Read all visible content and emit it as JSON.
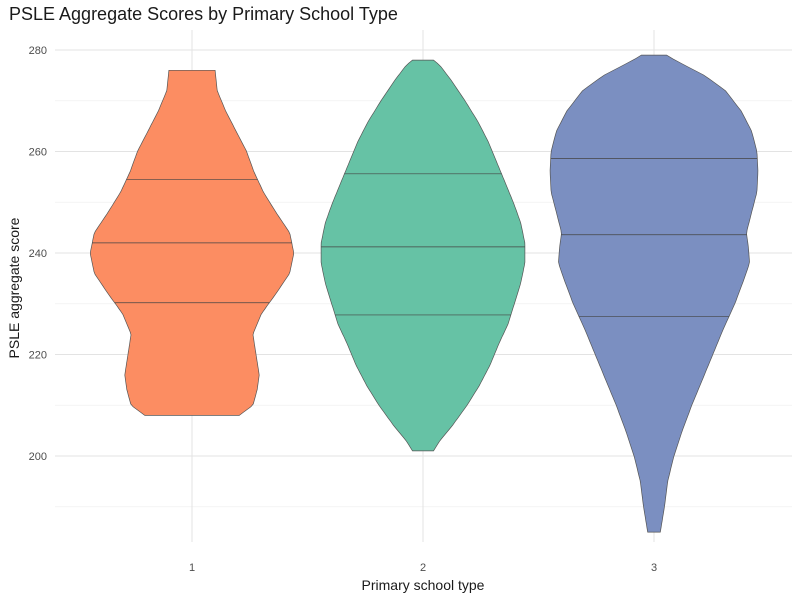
{
  "chart_data": {
    "type": "violin",
    "title": "PSLE Aggregate Scores by Primary School Type",
    "xlabel": "Primary school type",
    "ylabel": "PSLE aggregate score",
    "ylim": [
      185,
      280
    ],
    "grid": true,
    "y_ticks": [
      200,
      220,
      240,
      260,
      280
    ],
    "categories": [
      "1",
      "2",
      "3"
    ],
    "series": [
      {
        "color": "#fc8d62",
        "min": 208,
        "max": 276,
        "quantiles": [
          230.2,
          242,
          254.5
        ],
        "density_halfwidth": [
          [
            208,
            0.45
          ],
          [
            210,
            0.58
          ],
          [
            213,
            0.62
          ],
          [
            216,
            0.64
          ],
          [
            220,
            0.61
          ],
          [
            224,
            0.58
          ],
          [
            228,
            0.66
          ],
          [
            232,
            0.8
          ],
          [
            236,
            0.93
          ],
          [
            240,
            0.97
          ],
          [
            244,
            0.93
          ],
          [
            248,
            0.8
          ],
          [
            252,
            0.68
          ],
          [
            256,
            0.59
          ],
          [
            260,
            0.52
          ],
          [
            264,
            0.42
          ],
          [
            268,
            0.32
          ],
          [
            272,
            0.24
          ],
          [
            276,
            0.22
          ]
        ]
      },
      {
        "color": "#66c2a5",
        "min": 201,
        "max": 278,
        "quantiles": [
          227.8,
          241.2,
          255.6
        ],
        "density_halfwidth": [
          [
            201,
            0.1
          ],
          [
            203,
            0.16
          ],
          [
            206,
            0.28
          ],
          [
            210,
            0.42
          ],
          [
            214,
            0.54
          ],
          [
            218,
            0.64
          ],
          [
            222,
            0.72
          ],
          [
            226,
            0.81
          ],
          [
            230,
            0.87
          ],
          [
            234,
            0.93
          ],
          [
            238,
            0.97
          ],
          [
            242,
            0.97
          ],
          [
            246,
            0.93
          ],
          [
            250,
            0.86
          ],
          [
            254,
            0.78
          ],
          [
            258,
            0.7
          ],
          [
            262,
            0.62
          ],
          [
            266,
            0.52
          ],
          [
            270,
            0.4
          ],
          [
            274,
            0.27
          ],
          [
            277,
            0.16
          ],
          [
            278,
            0.1
          ]
        ]
      },
      {
        "color": "#7b8fc1",
        "min": 185,
        "max": 279,
        "quantiles": [
          227.5,
          243.6,
          258.6
        ],
        "density_halfwidth": [
          [
            185,
            0.06
          ],
          [
            190,
            0.1
          ],
          [
            195,
            0.13
          ],
          [
            200,
            0.19
          ],
          [
            205,
            0.27
          ],
          [
            210,
            0.36
          ],
          [
            215,
            0.46
          ],
          [
            220,
            0.56
          ],
          [
            225,
            0.66
          ],
          [
            230,
            0.77
          ],
          [
            235,
            0.86
          ],
          [
            238,
            0.91
          ],
          [
            241,
            0.9
          ],
          [
            244,
            0.88
          ],
          [
            248,
            0.93
          ],
          [
            252,
            0.98
          ],
          [
            256,
            0.99
          ],
          [
            260,
            0.98
          ],
          [
            264,
            0.93
          ],
          [
            268,
            0.83
          ],
          [
            272,
            0.68
          ],
          [
            275,
            0.48
          ],
          [
            278,
            0.2
          ],
          [
            279,
            0.12
          ]
        ]
      }
    ]
  }
}
